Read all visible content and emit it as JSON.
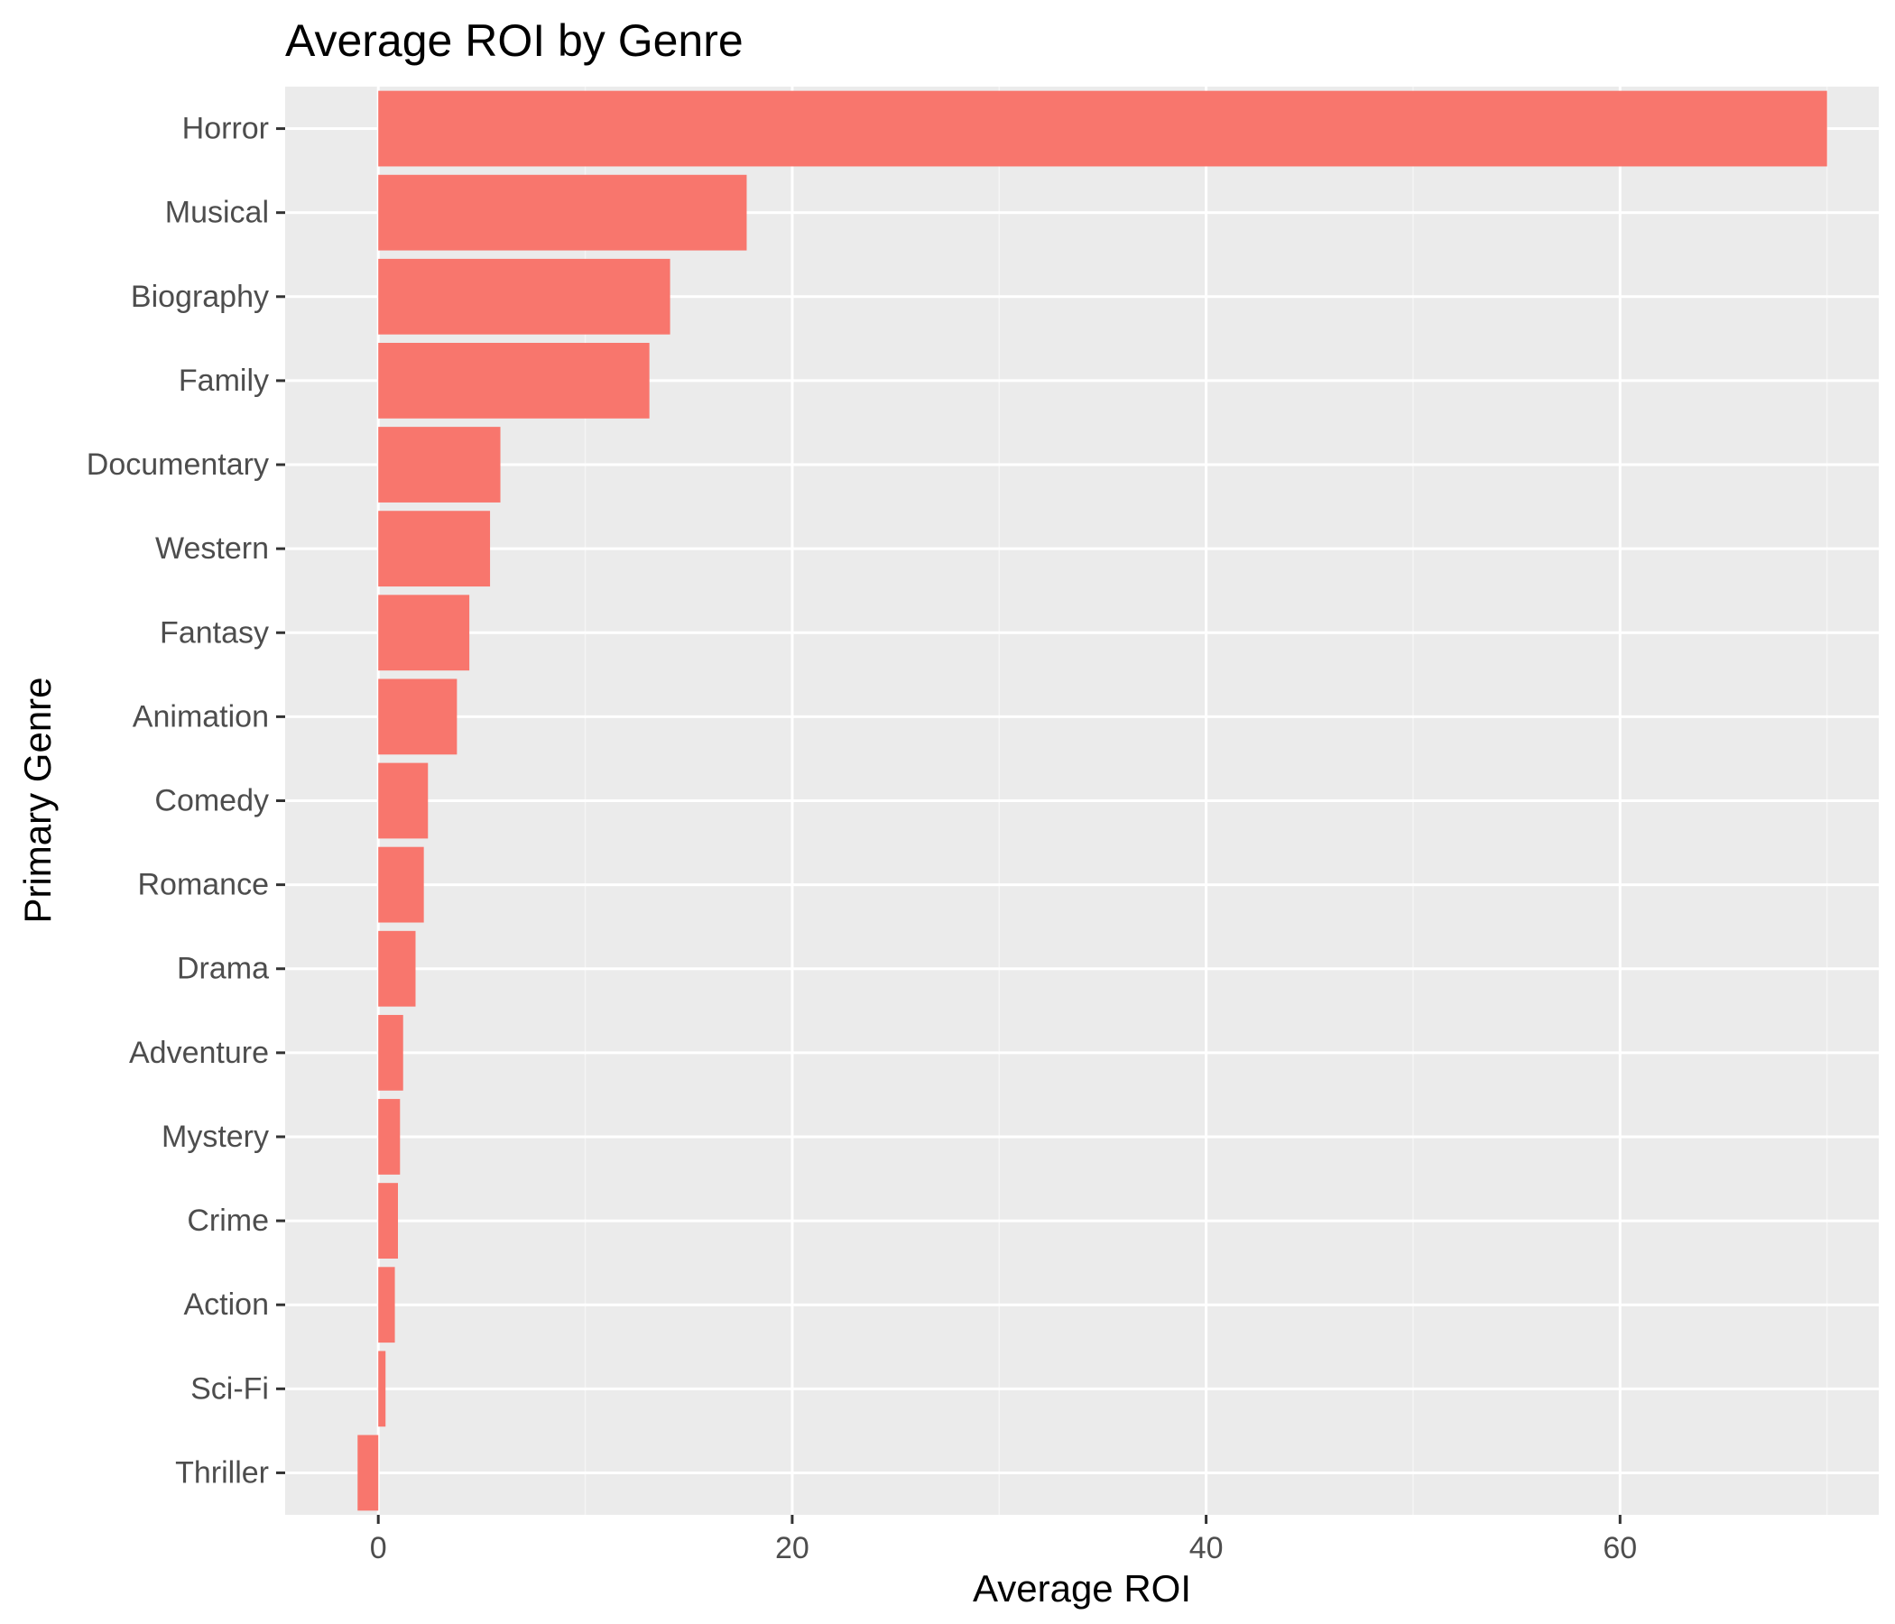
{
  "chart_data": {
    "type": "bar",
    "orientation": "horizontal",
    "title": "Average ROI by Genre",
    "xlabel": "Average ROI",
    "ylabel": "Primary Genre",
    "categories": [
      "Horror",
      "Musical",
      "Biography",
      "Family",
      "Documentary",
      "Western",
      "Fantasy",
      "Animation",
      "Comedy",
      "Romance",
      "Drama",
      "Adventure",
      "Mystery",
      "Crime",
      "Action",
      "Sci-Fi",
      "Thriller"
    ],
    "values": [
      70.0,
      17.8,
      14.1,
      13.1,
      5.9,
      5.4,
      4.4,
      3.8,
      2.4,
      2.2,
      1.8,
      1.2,
      1.05,
      0.95,
      0.8,
      0.35,
      -1.0
    ],
    "xlim": [
      -4.5,
      72.5
    ],
    "xticks": [
      0,
      20,
      40,
      60
    ],
    "grid": true,
    "colors": {
      "bar": "#F8766D",
      "panel": "#EBEBEB",
      "grid_major": "#FFFFFF",
      "grid_minor": "#F5F5F5",
      "tick": "#333333",
      "tick_label": "#4D4D4D"
    }
  }
}
